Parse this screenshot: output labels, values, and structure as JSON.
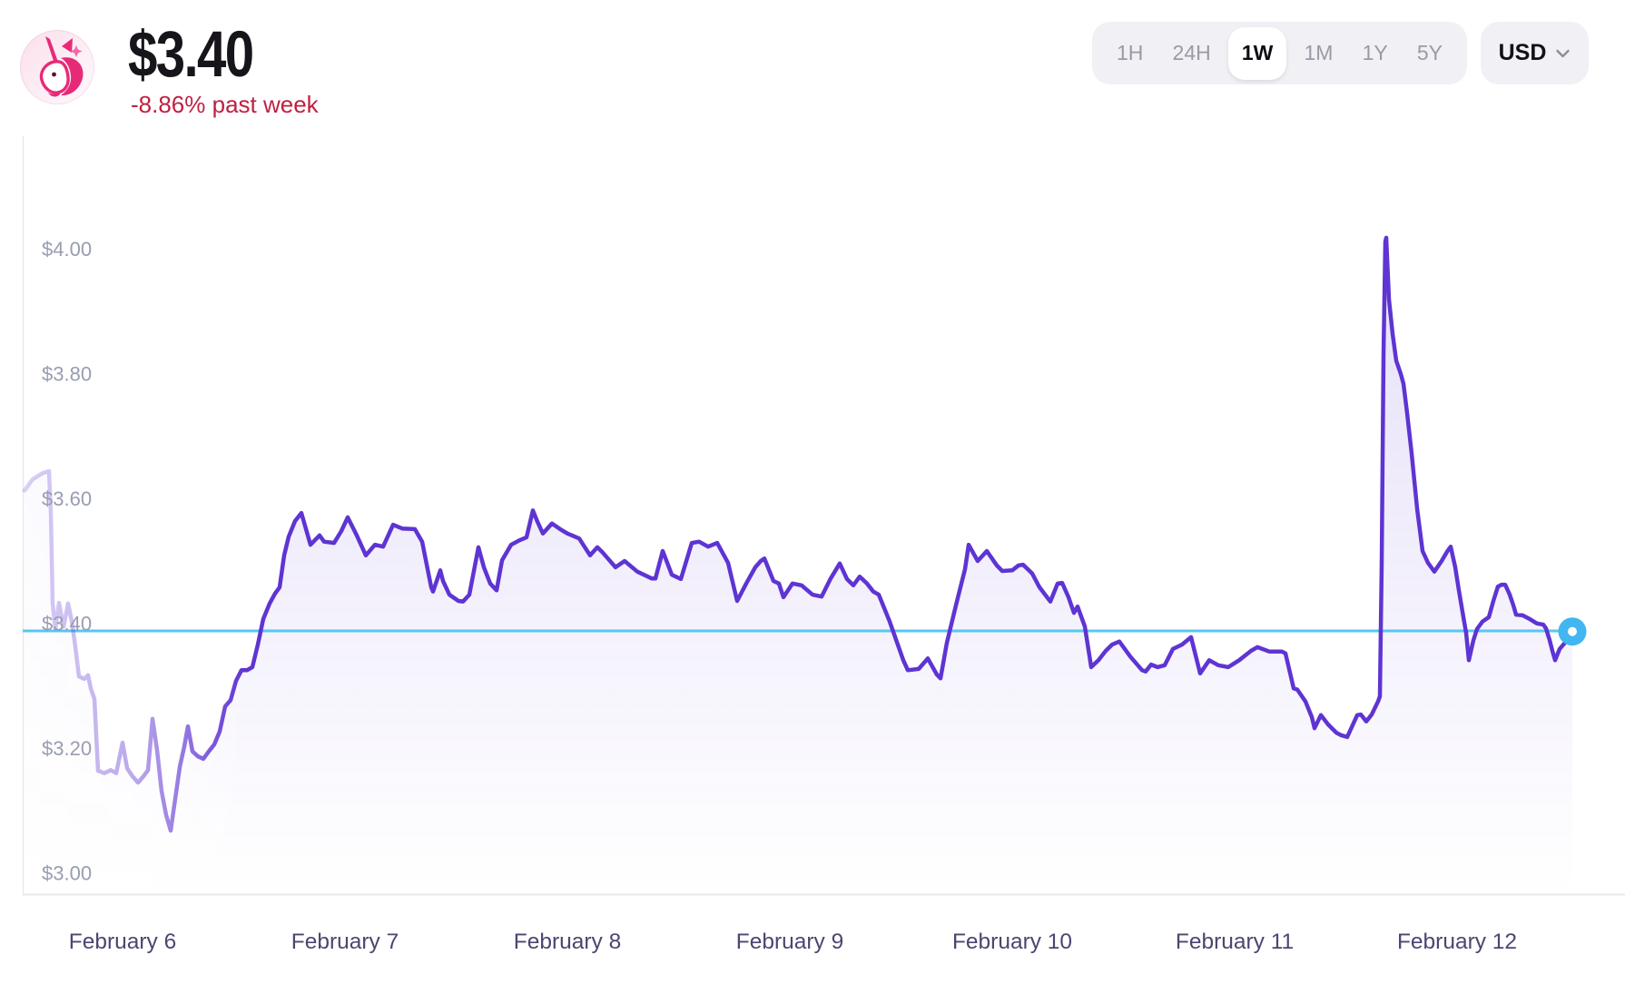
{
  "header": {
    "price": "$3.40",
    "change": "-8.86% past week",
    "change_color": "#c02041",
    "logo": "uniswap-unicorn"
  },
  "controls": {
    "ranges": [
      "1H",
      "24H",
      "1W",
      "1M",
      "1Y",
      "5Y"
    ],
    "selected_range": "1W",
    "currency": "USD"
  },
  "chart_data": {
    "type": "area",
    "series_name": "Token price in USD, past week",
    "line_color": "#5e34d3",
    "fill_color": "#6038d4",
    "baseline": {
      "price": 3.4,
      "color": "#57c6f2",
      "dot_color": "#42b6f1"
    },
    "y_ticks": [
      {
        "label": "$4.00",
        "price": 4.0
      },
      {
        "label": "$3.80",
        "price": 3.8
      },
      {
        "label": "$3.60",
        "price": 3.6
      },
      {
        "label": "$3.40",
        "price": 3.4
      },
      {
        "label": "$3.20",
        "price": 3.2
      },
      {
        "label": "$3.00",
        "price": 3.0
      }
    ],
    "y_tick_color": "#989db1",
    "x_labels": [
      {
        "label": "February 6",
        "day": 0
      },
      {
        "label": "February 7",
        "day": 1
      },
      {
        "label": "February 8",
        "day": 2
      },
      {
        "label": "February 9",
        "day": 3
      },
      {
        "label": "February 10",
        "day": 4
      },
      {
        "label": "February 11",
        "day": 5
      },
      {
        "label": "February 12",
        "day": 6
      }
    ],
    "x_label_color": "#4b4670",
    "x_axis_note": "points x = px from image left; day d maps to px = 135 + 245*d; window spans day -0.44 to 6.52",
    "current_price": 3.399,
    "points": [
      [
        27,
        3.625
      ],
      [
        36,
        3.643
      ],
      [
        47,
        3.653
      ],
      [
        54,
        3.656
      ],
      [
        56,
        3.589
      ],
      [
        57,
        3.521
      ],
      [
        58,
        3.444
      ],
      [
        61,
        3.404
      ],
      [
        65,
        3.445
      ],
      [
        70,
        3.407
      ],
      [
        75,
        3.444
      ],
      [
        79,
        3.416
      ],
      [
        83,
        3.375
      ],
      [
        87,
        3.327
      ],
      [
        93,
        3.323
      ],
      [
        97,
        3.329
      ],
      [
        100,
        3.308
      ],
      [
        104,
        3.291
      ],
      [
        108,
        3.176
      ],
      [
        115,
        3.172
      ],
      [
        122,
        3.177
      ],
      [
        128,
        3.172
      ],
      [
        135,
        3.221
      ],
      [
        140,
        3.18
      ],
      [
        146,
        3.167
      ],
      [
        152,
        3.157
      ],
      [
        158,
        3.167
      ],
      [
        163,
        3.177
      ],
      [
        168,
        3.259
      ],
      [
        173,
        3.209
      ],
      [
        178,
        3.143
      ],
      [
        183,
        3.105
      ],
      [
        188,
        3.08
      ],
      [
        193,
        3.131
      ],
      [
        198,
        3.182
      ],
      [
        203,
        3.215
      ],
      [
        207,
        3.247
      ],
      [
        212,
        3.207
      ],
      [
        218,
        3.199
      ],
      [
        224,
        3.195
      ],
      [
        230,
        3.207
      ],
      [
        236,
        3.218
      ],
      [
        242,
        3.239
      ],
      [
        248,
        3.279
      ],
      [
        254,
        3.289
      ],
      [
        260,
        3.32
      ],
      [
        266,
        3.337
      ],
      [
        272,
        3.337
      ],
      [
        278,
        3.342
      ],
      [
        284,
        3.378
      ],
      [
        290,
        3.419
      ],
      [
        297,
        3.444
      ],
      [
        303,
        3.46
      ],
      [
        308,
        3.47
      ],
      [
        313,
        3.521
      ],
      [
        318,
        3.551
      ],
      [
        325,
        3.576
      ],
      [
        332,
        3.589
      ],
      [
        342,
        3.538
      ],
      [
        352,
        3.553
      ],
      [
        357,
        3.543
      ],
      [
        368,
        3.541
      ],
      [
        376,
        3.56
      ],
      [
        383,
        3.582
      ],
      [
        393,
        3.553
      ],
      [
        403,
        3.521
      ],
      [
        413,
        3.538
      ],
      [
        422,
        3.535
      ],
      [
        433,
        3.57
      ],
      [
        443,
        3.564
      ],
      [
        457,
        3.563
      ],
      [
        465,
        3.543
      ],
      [
        475,
        3.47
      ],
      [
        477,
        3.463
      ],
      [
        485,
        3.497
      ],
      [
        488,
        3.48
      ],
      [
        495,
        3.458
      ],
      [
        505,
        3.448
      ],
      [
        510,
        3.447
      ],
      [
        517,
        3.458
      ],
      [
        527,
        3.534
      ],
      [
        533,
        3.502
      ],
      [
        540,
        3.476
      ],
      [
        547,
        3.465
      ],
      [
        553,
        3.513
      ],
      [
        563,
        3.538
      ],
      [
        572,
        3.545
      ],
      [
        580,
        3.55
      ],
      [
        587,
        3.593
      ],
      [
        592,
        3.575
      ],
      [
        598,
        3.556
      ],
      [
        608,
        3.572
      ],
      [
        617,
        3.563
      ],
      [
        625,
        3.556
      ],
      [
        638,
        3.548
      ],
      [
        650,
        3.521
      ],
      [
        658,
        3.534
      ],
      [
        663,
        3.527
      ],
      [
        678,
        3.502
      ],
      [
        688,
        3.512
      ],
      [
        702,
        3.495
      ],
      [
        718,
        3.484
      ],
      [
        722,
        3.484
      ],
      [
        730,
        3.528
      ],
      [
        740,
        3.49
      ],
      [
        750,
        3.483
      ],
      [
        762,
        3.541
      ],
      [
        770,
        3.543
      ],
      [
        780,
        3.535
      ],
      [
        790,
        3.541
      ],
      [
        802,
        3.509
      ],
      [
        812,
        3.448
      ],
      [
        822,
        3.476
      ],
      [
        832,
        3.502
      ],
      [
        838,
        3.512
      ],
      [
        842,
        3.516
      ],
      [
        852,
        3.48
      ],
      [
        858,
        3.476
      ],
      [
        863,
        3.454
      ],
      [
        873,
        3.476
      ],
      [
        883,
        3.473
      ],
      [
        895,
        3.458
      ],
      [
        905,
        3.455
      ],
      [
        915,
        3.484
      ],
      [
        925,
        3.508
      ],
      [
        933,
        3.483
      ],
      [
        940,
        3.473
      ],
      [
        947,
        3.487
      ],
      [
        955,
        3.476
      ],
      [
        962,
        3.463
      ],
      [
        968,
        3.458
      ],
      [
        980,
        3.415
      ],
      [
        995,
        3.353
      ],
      [
        1000,
        3.337
      ],
      [
        1012,
        3.339
      ],
      [
        1022,
        3.356
      ],
      [
        1032,
        3.33
      ],
      [
        1036,
        3.324
      ],
      [
        1043,
        3.381
      ],
      [
        1053,
        3.441
      ],
      [
        1063,
        3.499
      ],
      [
        1067,
        3.538
      ],
      [
        1077,
        3.512
      ],
      [
        1087,
        3.528
      ],
      [
        1098,
        3.505
      ],
      [
        1104,
        3.496
      ],
      [
        1115,
        3.497
      ],
      [
        1122,
        3.505
      ],
      [
        1127,
        3.506
      ],
      [
        1137,
        3.492
      ],
      [
        1145,
        3.47
      ],
      [
        1157,
        3.447
      ],
      [
        1165,
        3.476
      ],
      [
        1170,
        3.477
      ],
      [
        1177,
        3.454
      ],
      [
        1183,
        3.429
      ],
      [
        1187,
        3.439
      ],
      [
        1195,
        3.407
      ],
      [
        1202,
        3.342
      ],
      [
        1210,
        3.353
      ],
      [
        1218,
        3.368
      ],
      [
        1225,
        3.378
      ],
      [
        1233,
        3.383
      ],
      [
        1245,
        3.359
      ],
      [
        1258,
        3.337
      ],
      [
        1262,
        3.335
      ],
      [
        1268,
        3.346
      ],
      [
        1275,
        3.342
      ],
      [
        1283,
        3.345
      ],
      [
        1292,
        3.371
      ],
      [
        1302,
        3.378
      ],
      [
        1312,
        3.39
      ],
      [
        1322,
        3.332
      ],
      [
        1332,
        3.353
      ],
      [
        1342,
        3.345
      ],
      [
        1353,
        3.342
      ],
      [
        1365,
        3.353
      ],
      [
        1378,
        3.368
      ],
      [
        1385,
        3.374
      ],
      [
        1398,
        3.367
      ],
      [
        1412,
        3.367
      ],
      [
        1416,
        3.364
      ],
      [
        1425,
        3.308
      ],
      [
        1429,
        3.306
      ],
      [
        1438,
        3.287
      ],
      [
        1445,
        3.262
      ],
      [
        1448,
        3.244
      ],
      [
        1455,
        3.265
      ],
      [
        1463,
        3.25
      ],
      [
        1472,
        3.237
      ],
      [
        1477,
        3.233
      ],
      [
        1484,
        3.23
      ],
      [
        1495,
        3.265
      ],
      [
        1499,
        3.266
      ],
      [
        1505,
        3.255
      ],
      [
        1511,
        3.266
      ],
      [
        1518,
        3.287
      ],
      [
        1520,
        3.295
      ],
      [
        1522,
        3.509
      ],
      [
        1524,
        3.844
      ],
      [
        1526,
        4.024
      ],
      [
        1527,
        4.03
      ],
      [
        1530,
        3.931
      ],
      [
        1534,
        3.876
      ],
      [
        1538,
        3.833
      ],
      [
        1543,
        3.812
      ],
      [
        1546,
        3.796
      ],
      [
        1550,
        3.749
      ],
      [
        1555,
        3.684
      ],
      [
        1561,
        3.596
      ],
      [
        1567,
        3.528
      ],
      [
        1573,
        3.509
      ],
      [
        1580,
        3.495
      ],
      [
        1588,
        3.512
      ],
      [
        1594,
        3.527
      ],
      [
        1598,
        3.535
      ],
      [
        1603,
        3.502
      ],
      [
        1607,
        3.465
      ],
      [
        1612,
        3.422
      ],
      [
        1615,
        3.397
      ],
      [
        1618,
        3.353
      ],
      [
        1623,
        3.385
      ],
      [
        1627,
        3.403
      ],
      [
        1633,
        3.415
      ],
      [
        1640,
        3.422
      ],
      [
        1645,
        3.448
      ],
      [
        1650,
        3.471
      ],
      [
        1654,
        3.474
      ],
      [
        1658,
        3.474
      ],
      [
        1663,
        3.458
      ],
      [
        1667,
        3.441
      ],
      [
        1670,
        3.426
      ],
      [
        1677,
        3.425
      ],
      [
        1685,
        3.419
      ],
      [
        1693,
        3.412
      ],
      [
        1700,
        3.41
      ],
      [
        1703,
        3.404
      ],
      [
        1707,
        3.385
      ],
      [
        1710,
        3.368
      ],
      [
        1713,
        3.353
      ],
      [
        1718,
        3.371
      ],
      [
        1725,
        3.383
      ],
      [
        1732,
        3.399
      ]
    ]
  }
}
